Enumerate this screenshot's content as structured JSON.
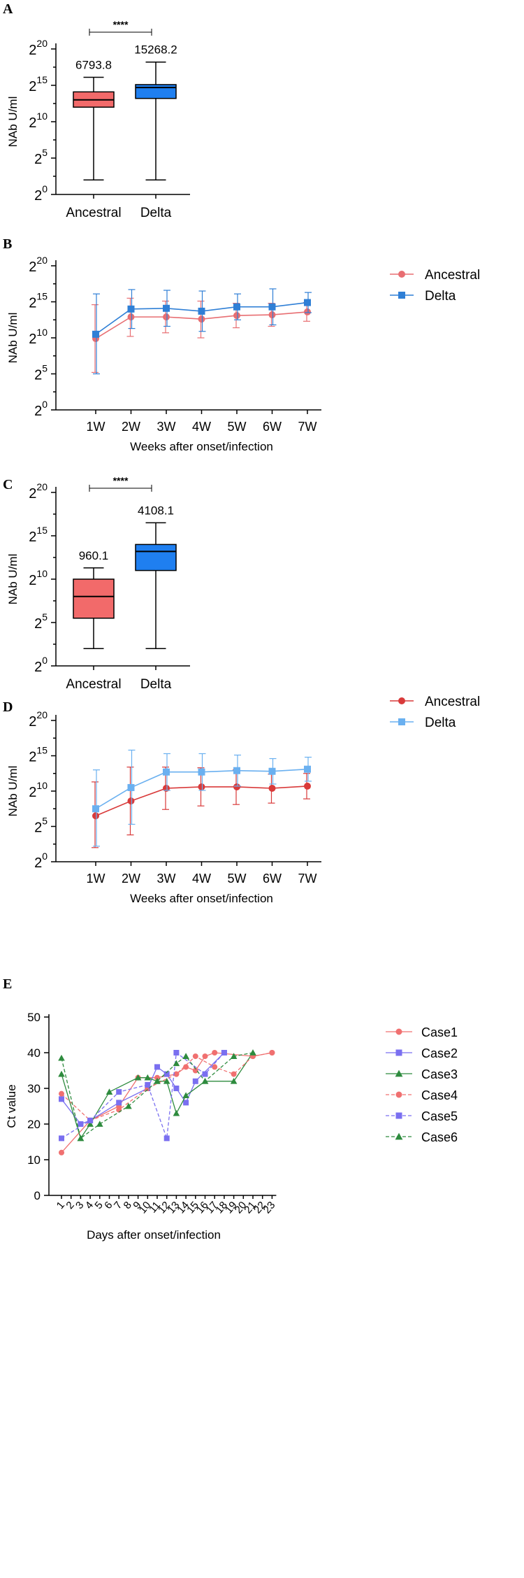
{
  "panels": {
    "A": {
      "letter": "A",
      "title": "",
      "ylabel": "NAb U/ml",
      "sig": "****",
      "ytick_labels": [
        [
          "2",
          "0"
        ],
        [
          "2",
          "5"
        ],
        [
          "2",
          "10"
        ],
        [
          "2",
          "15"
        ],
        [
          "2",
          "20"
        ]
      ],
      "categories": [
        "Ancestral",
        "Delta"
      ],
      "box_labels": [
        "6793.8",
        "15268.2"
      ],
      "colors": [
        "#f26a6a",
        "#1f7ff0"
      ]
    },
    "B": {
      "letter": "B",
      "ylabel": "NAb U/ml",
      "xlabel": "Weeks after onset/infection",
      "ytick_labels": [
        [
          "2",
          "0"
        ],
        [
          "2",
          "5"
        ],
        [
          "2",
          "10"
        ],
        [
          "2",
          "15"
        ],
        [
          "2",
          "20"
        ]
      ],
      "categories": [
        "1W",
        "2W",
        "3W",
        "4W",
        "5W",
        "6W",
        "7W"
      ],
      "legend": [
        "Ancestral",
        "Delta"
      ],
      "colors": [
        "#e86e72",
        "#2f7fd6"
      ]
    },
    "C": {
      "letter": "C",
      "ylabel": "NAb U/ml",
      "sig": "****",
      "ytick_labels": [
        [
          "2",
          "0"
        ],
        [
          "2",
          "5"
        ],
        [
          "2",
          "10"
        ],
        [
          "2",
          "15"
        ],
        [
          "2",
          "20"
        ]
      ],
      "categories": [
        "Ancestral",
        "Delta"
      ],
      "box_labels": [
        "960.1",
        "4108.1"
      ],
      "colors": [
        "#f26a6a",
        "#1f7ff0"
      ]
    },
    "D": {
      "letter": "D",
      "ylabel": "NAb U/ml",
      "xlabel": "Weeks after onset/infection",
      "ytick_labels": [
        [
          "2",
          "0"
        ],
        [
          "2",
          "5"
        ],
        [
          "2",
          "10"
        ],
        [
          "2",
          "15"
        ],
        [
          "2",
          "20"
        ]
      ],
      "categories": [
        "1W",
        "2W",
        "3W",
        "4W",
        "5W",
        "6W",
        "7W"
      ],
      "legend": [
        "Ancestral",
        "Delta"
      ],
      "colors": [
        "#d93a3a",
        "#6ab0f0"
      ]
    },
    "E": {
      "letter": "E",
      "ylabel": "Ct value",
      "xlabel": "Days after onset/infection",
      "legend": [
        "Case1",
        "Case2",
        "Case3",
        "Case4",
        "Case5",
        "Case6"
      ],
      "colors": [
        "#f07070",
        "#7a6ff0",
        "#2e8b3e",
        "#f07070",
        "#7a6ff0",
        "#2e8b3e"
      ]
    }
  },
  "chart_data": [
    {
      "panel": "A",
      "type": "box",
      "title": "",
      "ylabel": "NAb U/ml",
      "yscale": "log2",
      "ylim_log2": [
        0,
        20
      ],
      "categories": [
        "Ancestral",
        "Delta"
      ],
      "boxes": [
        {
          "name": "Ancestral",
          "min": 2,
          "q1": 12,
          "median": 13,
          "q3": 14.1,
          "max": 16.1,
          "label": "6793.8"
        },
        {
          "name": "Delta",
          "min": 2,
          "q1": 13.2,
          "median": 14.7,
          "q3": 15.1,
          "max": 18.2,
          "label": "15268.2"
        }
      ],
      "significance": "****"
    },
    {
      "panel": "B",
      "type": "line",
      "ylabel": "NAb U/ml",
      "xlabel": "Weeks after onset/infection",
      "yscale": "log2",
      "ylim_log2": [
        0,
        20
      ],
      "categories": [
        "1W",
        "2W",
        "3W",
        "4W",
        "5W",
        "6W",
        "7W"
      ],
      "series": [
        {
          "name": "Ancestral",
          "marker": "circle",
          "values": [
            9.9,
            12.9,
            12.9,
            12.6,
            13.1,
            13.2,
            13.6
          ],
          "err_high": [
            14.6,
            15.5,
            15.1,
            15.1,
            14.8,
            14.8,
            14.9
          ],
          "err_low": [
            5.2,
            10.2,
            10.7,
            10.0,
            11.4,
            11.6,
            12.3
          ]
        },
        {
          "name": "Delta",
          "marker": "square",
          "values": [
            10.5,
            14.0,
            14.1,
            13.7,
            14.3,
            14.3,
            14.9
          ],
          "err_high": [
            16.1,
            16.7,
            16.6,
            16.5,
            16.1,
            16.8,
            16.3
          ],
          "err_low": [
            5.0,
            11.3,
            11.6,
            10.9,
            12.5,
            11.8,
            13.5
          ]
        }
      ]
    },
    {
      "panel": "C",
      "type": "box",
      "ylabel": "NAb U/ml",
      "yscale": "log2",
      "ylim_log2": [
        0,
        20
      ],
      "categories": [
        "Ancestral",
        "Delta"
      ],
      "boxes": [
        {
          "name": "Ancestral",
          "min": 2,
          "q1": 5.5,
          "median": 8,
          "q3": 10,
          "max": 11.3,
          "label": "960.1"
        },
        {
          "name": "Delta",
          "min": 2,
          "q1": 11,
          "median": 13.2,
          "q3": 14,
          "max": 16.5,
          "label": "4108.1"
        }
      ],
      "significance": "****"
    },
    {
      "panel": "D",
      "type": "line",
      "ylabel": "NAb U/ml",
      "xlabel": "Weeks after onset/infection",
      "yscale": "log2",
      "ylim_log2": [
        0,
        20
      ],
      "categories": [
        "1W",
        "2W",
        "3W",
        "4W",
        "5W",
        "6W",
        "7W"
      ],
      "series": [
        {
          "name": "Ancestral",
          "marker": "circle",
          "values": [
            6.5,
            8.6,
            10.4,
            10.6,
            10.6,
            10.4,
            10.7
          ],
          "err_high": [
            11.3,
            13.4,
            13.4,
            13.3,
            13.0,
            12.4,
            12.5
          ],
          "err_low": [
            2.0,
            3.8,
            7.4,
            7.9,
            8.1,
            8.3,
            8.9
          ]
        },
        {
          "name": "Delta",
          "marker": "square",
          "values": [
            7.5,
            10.5,
            12.7,
            12.7,
            12.9,
            12.8,
            13.1
          ],
          "err_high": [
            13.0,
            15.8,
            15.3,
            15.3,
            15.1,
            14.6,
            14.8
          ],
          "err_low": [
            2.2,
            5.3,
            10.1,
            10.1,
            10.7,
            11.0,
            11.4
          ]
        }
      ]
    },
    {
      "panel": "E",
      "type": "line",
      "ylabel": "Ct value",
      "xlabel": "Days after onset/infection",
      "ylim": [
        0,
        50
      ],
      "yticks": [
        0,
        10,
        20,
        30,
        40,
        50
      ],
      "xlim": [
        1,
        23
      ],
      "xticks": [
        1,
        2,
        3,
        4,
        5,
        6,
        7,
        8,
        9,
        10,
        11,
        12,
        13,
        14,
        15,
        16,
        17,
        18,
        19,
        20,
        21,
        22,
        23
      ],
      "series": [
        {
          "name": "Case1",
          "marker": "circle",
          "dashed": false,
          "x": [
            1,
            4,
            7,
            9,
            11,
            13,
            14,
            15,
            16,
            17,
            21,
            23
          ],
          "y": [
            12,
            21,
            25,
            33,
            33,
            34,
            36,
            35,
            39,
            40,
            39,
            40
          ]
        },
        {
          "name": "Case2",
          "marker": "square",
          "dashed": false,
          "x": [
            1,
            3,
            4,
            7,
            10,
            11,
            12,
            13,
            14,
            15,
            18
          ],
          "y": [
            27,
            20,
            21,
            26,
            30,
            36,
            34,
            30,
            26,
            32,
            40
          ]
        },
        {
          "name": "Case3",
          "marker": "triangle",
          "dashed": false,
          "x": [
            1,
            3,
            4,
            6,
            9,
            10,
            11,
            12,
            13,
            14,
            16,
            19,
            21
          ],
          "y": [
            34,
            16,
            20,
            29,
            33,
            33,
            32,
            32,
            23,
            28,
            32,
            32,
            40
          ]
        },
        {
          "name": "Case4",
          "marker": "circle",
          "dashed": true,
          "x": [
            1,
            4,
            7,
            10,
            13,
            15,
            17,
            19,
            21,
            23
          ],
          "y": [
            28.5,
            21,
            24,
            30,
            34,
            39,
            36,
            34,
            39,
            40
          ]
        },
        {
          "name": "Case5",
          "marker": "square",
          "dashed": true,
          "x": [
            1,
            4,
            7,
            10,
            12,
            13,
            16,
            18
          ],
          "y": [
            16,
            21,
            29,
            31,
            16,
            40,
            34,
            40
          ]
        },
        {
          "name": "Case6",
          "marker": "triangle",
          "dashed": true,
          "x": [
            1,
            3,
            5,
            8,
            11,
            13,
            14,
            16,
            19,
            21
          ],
          "y": [
            38.5,
            16,
            20,
            25,
            32,
            37,
            39,
            32,
            39,
            40
          ]
        }
      ]
    }
  ]
}
